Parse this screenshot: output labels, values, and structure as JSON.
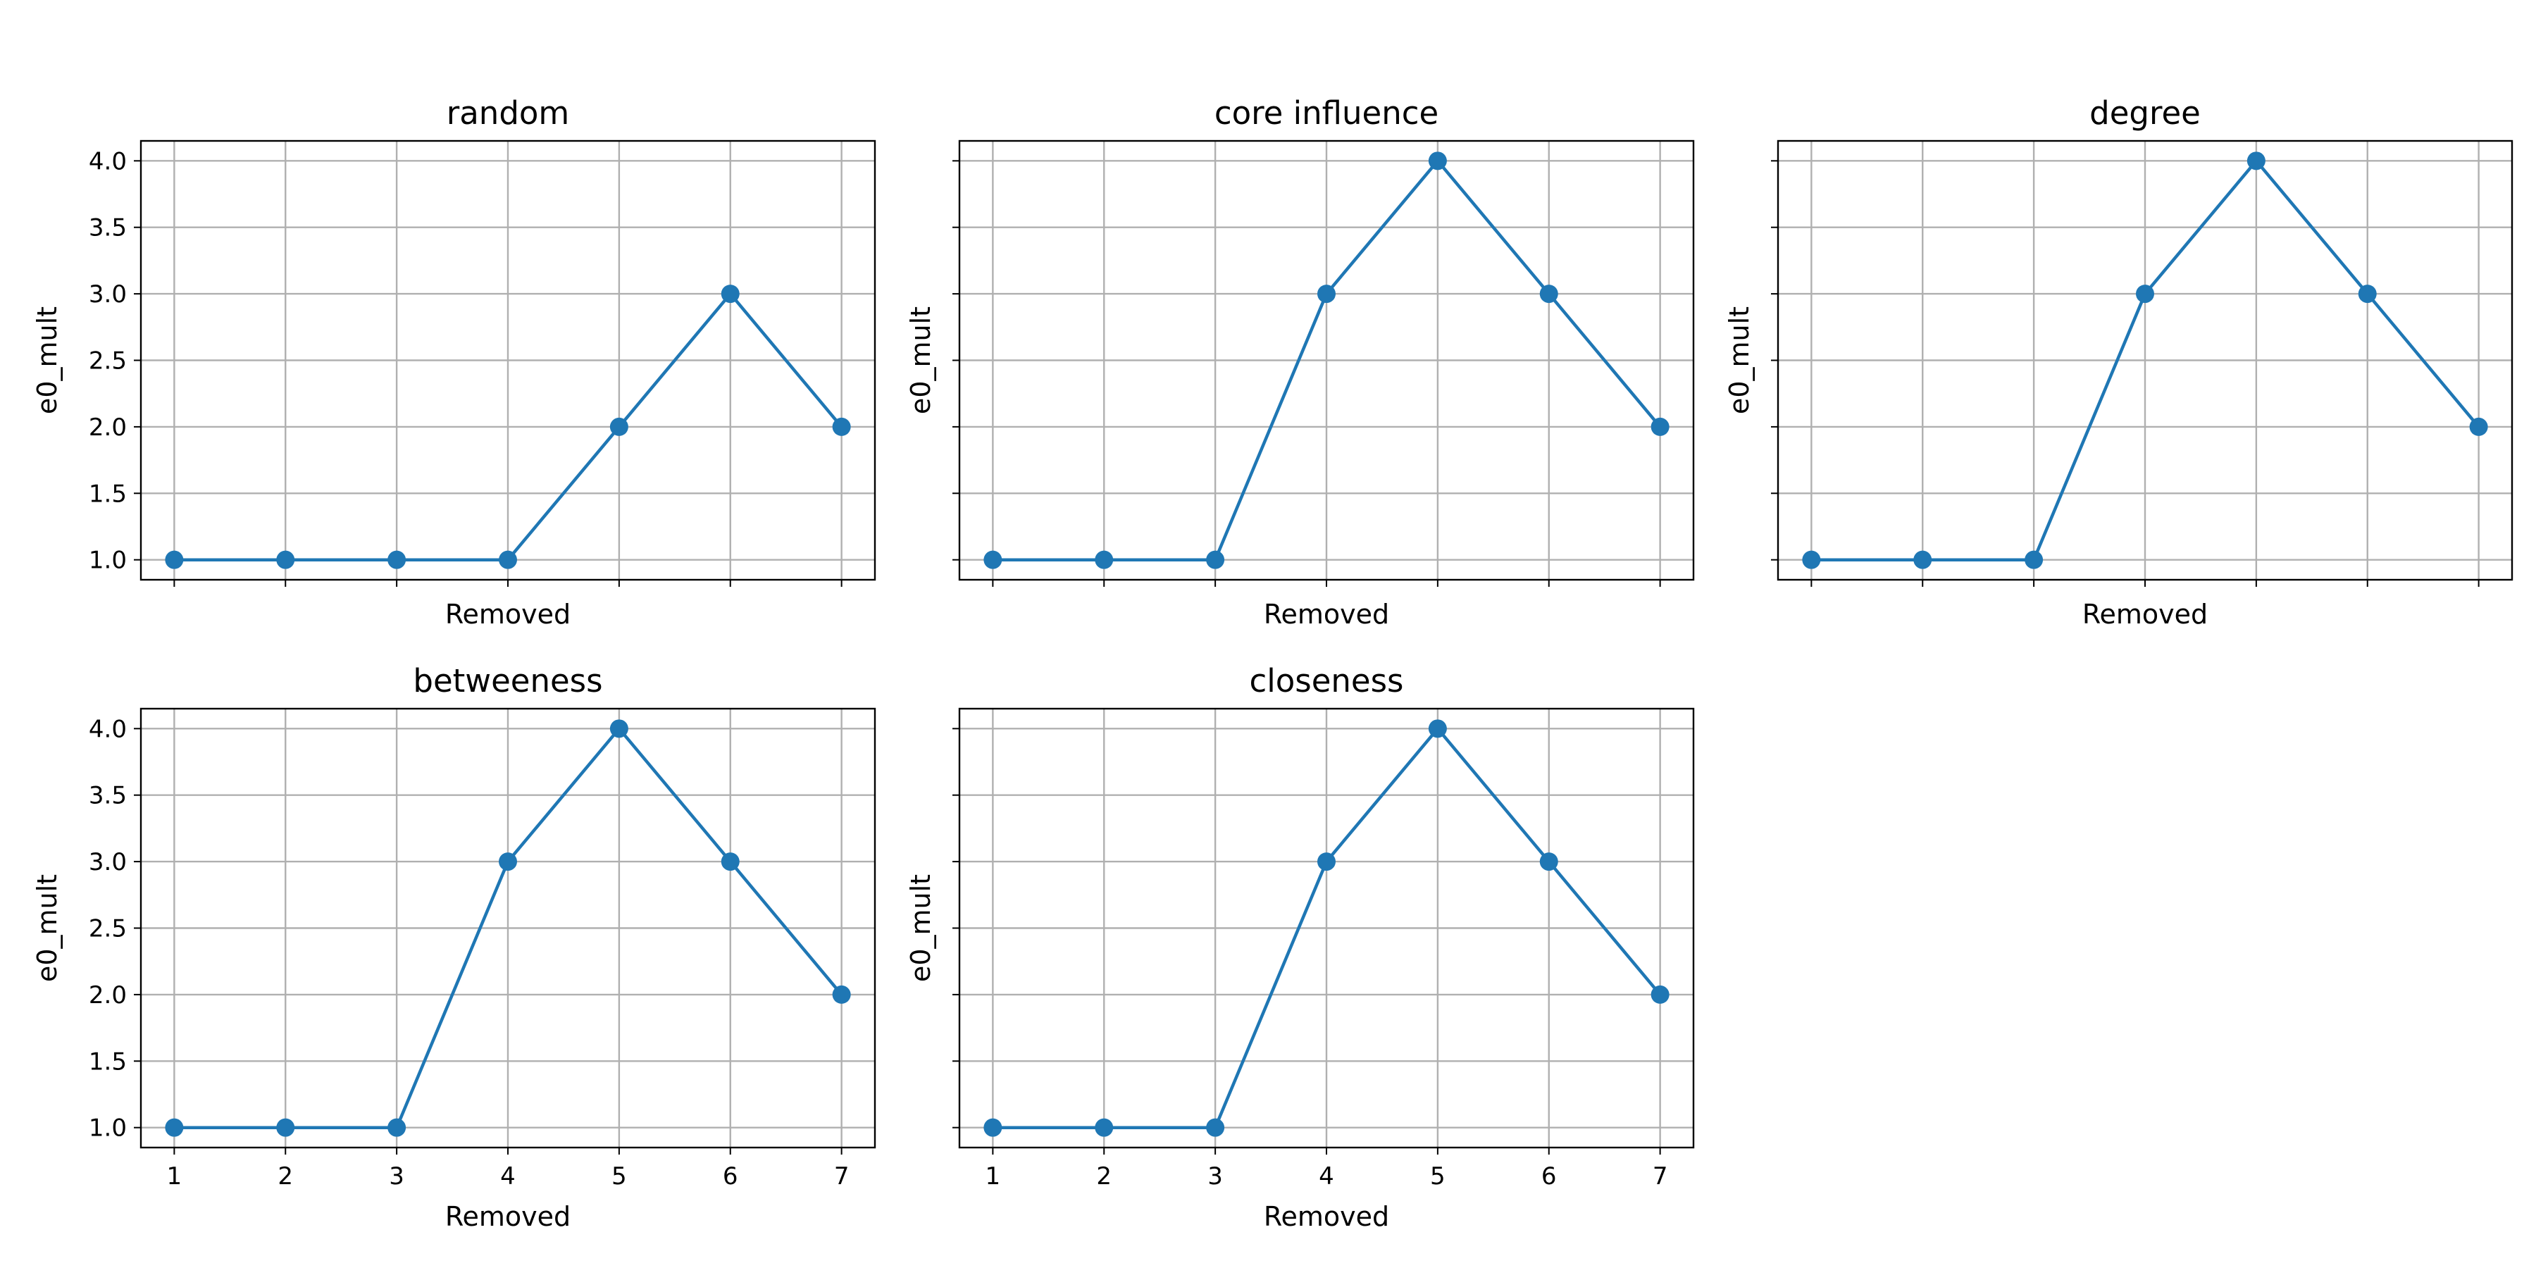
{
  "chart_data": [
    {
      "type": "line",
      "title": "random",
      "xlabel": "Removed",
      "ylabel": "e0_mult",
      "x": [
        1,
        2,
        3,
        4,
        5,
        6,
        7
      ],
      "series": [
        {
          "values": [
            1,
            1,
            1,
            1,
            2,
            3,
            2
          ]
        }
      ],
      "xlim": [
        0.7,
        7.3
      ],
      "ylim": [
        0.85,
        4.15
      ],
      "yticks": [
        "1.0",
        "1.5",
        "2.0",
        "2.5",
        "3.0",
        "3.5",
        "4.0"
      ],
      "xticks": [
        "1",
        "2",
        "3",
        "4",
        "5",
        "6",
        "7"
      ],
      "show_xtick_labels": false,
      "show_ytick_labels": true,
      "grid": true
    },
    {
      "type": "line",
      "title": "core influence",
      "xlabel": "Removed",
      "ylabel": "e0_mult",
      "x": [
        1,
        2,
        3,
        4,
        5,
        6,
        7
      ],
      "series": [
        {
          "values": [
            1,
            1,
            1,
            3,
            4,
            3,
            2
          ]
        }
      ],
      "xlim": [
        0.7,
        7.3
      ],
      "ylim": [
        0.85,
        4.15
      ],
      "yticks": [
        "1.0",
        "1.5",
        "2.0",
        "2.5",
        "3.0",
        "3.5",
        "4.0"
      ],
      "xticks": [
        "1",
        "2",
        "3",
        "4",
        "5",
        "6",
        "7"
      ],
      "show_xtick_labels": false,
      "show_ytick_labels": false,
      "grid": true
    },
    {
      "type": "line",
      "title": "degree",
      "xlabel": "Removed",
      "ylabel": "e0_mult",
      "x": [
        1,
        2,
        3,
        4,
        5,
        6,
        7
      ],
      "series": [
        {
          "values": [
            1,
            1,
            1,
            3,
            4,
            3,
            2
          ]
        }
      ],
      "xlim": [
        0.7,
        7.3
      ],
      "ylim": [
        0.85,
        4.15
      ],
      "yticks": [
        "1.0",
        "1.5",
        "2.0",
        "2.5",
        "3.0",
        "3.5",
        "4.0"
      ],
      "xticks": [
        "1",
        "2",
        "3",
        "4",
        "5",
        "6",
        "7"
      ],
      "show_xtick_labels": false,
      "show_ytick_labels": false,
      "grid": true
    },
    {
      "type": "line",
      "title": "betweeness",
      "xlabel": "Removed",
      "ylabel": "e0_mult",
      "x": [
        1,
        2,
        3,
        4,
        5,
        6,
        7
      ],
      "series": [
        {
          "values": [
            1,
            1,
            1,
            3,
            4,
            3,
            2
          ]
        }
      ],
      "xlim": [
        0.7,
        7.3
      ],
      "ylim": [
        0.85,
        4.15
      ],
      "yticks": [
        "1.0",
        "1.5",
        "2.0",
        "2.5",
        "3.0",
        "3.5",
        "4.0"
      ],
      "xticks": [
        "1",
        "2",
        "3",
        "4",
        "5",
        "6",
        "7"
      ],
      "show_xtick_labels": true,
      "show_ytick_labels": true,
      "grid": true
    },
    {
      "type": "line",
      "title": "closeness",
      "xlabel": "Removed",
      "ylabel": "e0_mult",
      "x": [
        1,
        2,
        3,
        4,
        5,
        6,
        7
      ],
      "series": [
        {
          "values": [
            1,
            1,
            1,
            3,
            4,
            3,
            2
          ]
        }
      ],
      "xlim": [
        0.7,
        7.3
      ],
      "ylim": [
        0.85,
        4.15
      ],
      "yticks": [
        "1.0",
        "1.5",
        "2.0",
        "2.5",
        "3.0",
        "3.5",
        "4.0"
      ],
      "xticks": [
        "1",
        "2",
        "3",
        "4",
        "5",
        "6",
        "7"
      ],
      "show_xtick_labels": true,
      "show_ytick_labels": false,
      "grid": true
    }
  ],
  "colors": {
    "line": "#1f77b4",
    "grid": "#b0b0b0",
    "axes": "#000000"
  }
}
